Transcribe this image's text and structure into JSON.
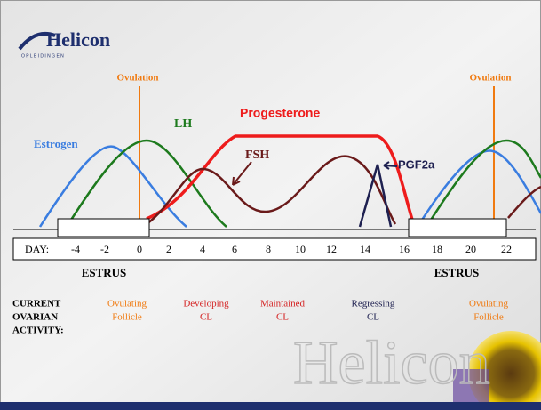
{
  "header": {
    "logo": "Helicon",
    "logo_sub": "O P L E I D I N G E N"
  },
  "labels": {
    "ovulation_left": "Ovulation",
    "ovulation_right": "Ovulation",
    "lh": "LH",
    "progesterone": "Progesterone",
    "estrogen": "Estrogen",
    "fsh": "FSH",
    "pgf2a": "PGF2a"
  },
  "axis": {
    "label": "DAY:",
    "days": [
      "-4",
      "-2",
      "0",
      "2",
      "4",
      "6",
      "8",
      "10",
      "12",
      "14",
      "16",
      "18",
      "20",
      "22"
    ]
  },
  "estrus": [
    "ESTRUS",
    "ESTRUS"
  ],
  "activity": {
    "heading": [
      "CURRENT",
      "OVARIAN",
      "ACTIVITY:"
    ],
    "items": [
      [
        "Ovulating",
        "Follicle"
      ],
      [
        "Developing",
        "CL"
      ],
      [
        "Maintained",
        "CL"
      ],
      [
        "Regressing",
        "CL"
      ],
      [
        "Ovulating",
        "Follicle"
      ]
    ]
  },
  "watermark": "Helicon"
}
